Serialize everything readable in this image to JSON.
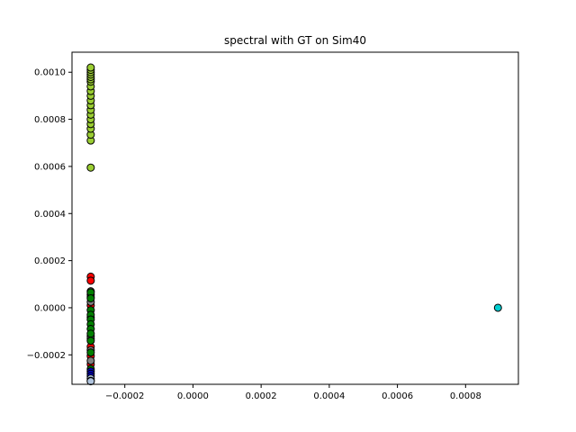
{
  "chart_data": {
    "type": "scatter",
    "title": "spectral with GT on Sim40",
    "xlabel": "",
    "ylabel": "",
    "xlim": [
      -0.000355,
      0.000955
    ],
    "ylim": [
      -0.000325,
      0.001085
    ],
    "grid": false,
    "legend": "none",
    "x_ticks": [
      {
        "value": -0.0002,
        "label": "−0.0002"
      },
      {
        "value": 0.0,
        "label": "0.0000"
      },
      {
        "value": 0.0002,
        "label": "0.0002"
      },
      {
        "value": 0.0004,
        "label": "0.0004"
      },
      {
        "value": 0.0006,
        "label": "0.0006"
      },
      {
        "value": 0.0008,
        "label": "0.0008"
      }
    ],
    "y_ticks": [
      {
        "value": -0.0002,
        "label": "−0.0002"
      },
      {
        "value": 0.0,
        "label": "0.0000"
      },
      {
        "value": 0.0002,
        "label": "0.0002"
      },
      {
        "value": 0.0004,
        "label": "0.0004"
      },
      {
        "value": 0.0006,
        "label": "0.0006"
      },
      {
        "value": 0.0008,
        "label": "0.0008"
      },
      {
        "value": 0.001,
        "label": "0.0010"
      }
    ],
    "series": [
      {
        "color": "#9acd32",
        "points": [
          {
            "x": -0.0003,
            "y": 0.000595
          },
          {
            "x": -0.0003,
            "y": 0.00071
          },
          {
            "x": -0.0003,
            "y": 0.000735
          },
          {
            "x": -0.0003,
            "y": 0.00076
          },
          {
            "x": -0.0003,
            "y": 0.00078
          },
          {
            "x": -0.0003,
            "y": 0.0008
          },
          {
            "x": -0.0003,
            "y": 0.00082
          },
          {
            "x": -0.0003,
            "y": 0.00084
          },
          {
            "x": -0.0003,
            "y": 0.00086
          },
          {
            "x": -0.0003,
            "y": 0.00088
          },
          {
            "x": -0.0003,
            "y": 0.0009
          },
          {
            "x": -0.0003,
            "y": 0.00092
          },
          {
            "x": -0.0003,
            "y": 0.00094
          },
          {
            "x": -0.0003,
            "y": 0.00096
          },
          {
            "x": -0.0003,
            "y": 0.00097
          },
          {
            "x": -0.0003,
            "y": 0.00098
          },
          {
            "x": -0.0003,
            "y": 0.00099
          },
          {
            "x": -0.0003,
            "y": 0.001
          },
          {
            "x": -0.0003,
            "y": 0.00101
          },
          {
            "x": -0.0003,
            "y": 0.00102
          }
        ]
      },
      {
        "color": "#ff0000",
        "points": [
          {
            "x": -0.0003,
            "y": 0.000132
          },
          {
            "x": -0.0003,
            "y": 0.000115
          },
          {
            "x": -0.0003,
            "y": 5.5e-05
          },
          {
            "x": -0.0003,
            "y": 1e-05
          },
          {
            "x": -0.0003,
            "y": -4e-05
          },
          {
            "x": -0.0003,
            "y": -0.00012
          },
          {
            "x": -0.0003,
            "y": -0.000165
          },
          {
            "x": -0.0003,
            "y": -0.000205
          },
          {
            "x": -0.0003,
            "y": -0.00024
          }
        ]
      },
      {
        "color": "#808080",
        "points": [
          {
            "x": -0.0003,
            "y": 7e-05
          },
          {
            "x": -0.0003,
            "y": 4.5e-05
          },
          {
            "x": -0.0003,
            "y": 2.5e-05
          },
          {
            "x": -0.0003,
            "y": -0.00013
          },
          {
            "x": -0.0003,
            "y": -0.00018
          },
          {
            "x": -0.0003,
            "y": -0.000225
          }
        ]
      },
      {
        "color": "#008000",
        "points": [
          {
            "x": -0.0003,
            "y": 6.5e-05
          },
          {
            "x": -0.0003,
            "y": 4e-05
          },
          {
            "x": -0.0003,
            "y": -1e-05
          },
          {
            "x": -0.0003,
            "y": -3e-05
          },
          {
            "x": -0.0003,
            "y": -5e-05
          },
          {
            "x": -0.0003,
            "y": -7e-05
          },
          {
            "x": -0.0003,
            "y": -9e-05
          },
          {
            "x": -0.0003,
            "y": -0.00011
          },
          {
            "x": -0.0003,
            "y": -0.00014
          },
          {
            "x": -0.0003,
            "y": -0.00019
          },
          {
            "x": -0.0003,
            "y": -0.00026
          }
        ]
      },
      {
        "color": "#0000cd",
        "points": [
          {
            "x": -0.0003,
            "y": -0.00027
          },
          {
            "x": -0.0003,
            "y": -0.00028
          },
          {
            "x": -0.0003,
            "y": -0.00029
          }
        ]
      },
      {
        "color": "#b0c4de",
        "points": [
          {
            "x": -0.0003,
            "y": -0.0003
          },
          {
            "x": -0.0003,
            "y": -0.00031
          },
          {
            "x": -0.0003,
            "y": -0.000312
          }
        ]
      },
      {
        "color": "#00ced1",
        "points": [
          {
            "x": 0.000895,
            "y": 0.0
          }
        ]
      }
    ]
  }
}
